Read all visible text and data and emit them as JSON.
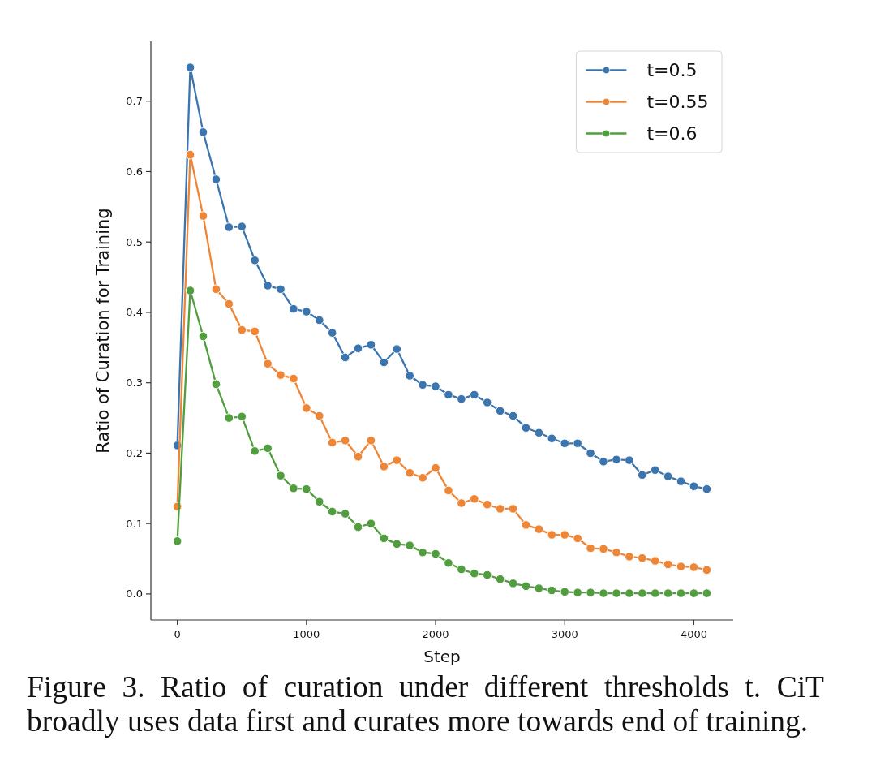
{
  "chart_data": {
    "type": "line",
    "xlabel": "Step",
    "ylabel": "Ratio of Curation for Training",
    "annotations": [
      "Figure 3. Ratio of curation under different thresholds t. CiT broadly uses data first and curates more towards end of training."
    ],
    "x": [
      0,
      100,
      200,
      300,
      400,
      500,
      600,
      700,
      800,
      900,
      1000,
      1100,
      1200,
      1300,
      1400,
      1500,
      1600,
      1700,
      1800,
      1900,
      2000,
      2100,
      2200,
      2300,
      2400,
      2500,
      2600,
      2700,
      2800,
      2900,
      3000,
      3100,
      3200,
      3300,
      3400,
      3500,
      3600,
      3700,
      3800,
      3900,
      4000,
      4100
    ],
    "series": [
      {
        "name": "t=0.5",
        "color": "#3b75af",
        "values": [
          0.211,
          0.748,
          0.656,
          0.589,
          0.521,
          0.522,
          0.474,
          0.438,
          0.433,
          0.405,
          0.401,
          0.389,
          0.371,
          0.336,
          0.349,
          0.354,
          0.329,
          0.348,
          0.31,
          0.297,
          0.295,
          0.283,
          0.277,
          0.283,
          0.272,
          0.26,
          0.253,
          0.236,
          0.229,
          0.221,
          0.214,
          0.214,
          0.2,
          0.188,
          0.191,
          0.19,
          0.169,
          0.176,
          0.167,
          0.16,
          0.153,
          0.149
        ]
      },
      {
        "name": "t=0.55",
        "color": "#ef8636",
        "values": [
          0.124,
          0.624,
          0.537,
          0.433,
          0.412,
          0.375,
          0.373,
          0.327,
          0.311,
          0.306,
          0.264,
          0.253,
          0.215,
          0.218,
          0.195,
          0.218,
          0.181,
          0.19,
          0.172,
          0.165,
          0.179,
          0.147,
          0.129,
          0.135,
          0.127,
          0.121,
          0.121,
          0.098,
          0.092,
          0.084,
          0.084,
          0.079,
          0.065,
          0.064,
          0.059,
          0.053,
          0.051,
          0.047,
          0.042,
          0.039,
          0.038,
          0.034
        ]
      },
      {
        "name": "t=0.6",
        "color": "#519e3e",
        "values": [
          0.075,
          0.431,
          0.366,
          0.298,
          0.25,
          0.252,
          0.203,
          0.207,
          0.168,
          0.15,
          0.149,
          0.131,
          0.117,
          0.114,
          0.095,
          0.1,
          0.079,
          0.071,
          0.069,
          0.059,
          0.057,
          0.044,
          0.035,
          0.029,
          0.027,
          0.021,
          0.015,
          0.011,
          0.008,
          0.005,
          0.003,
          0.002,
          0.002,
          0.001,
          0.001,
          0.001,
          0.001,
          0.001,
          0.001,
          0.001,
          0.001,
          0.001
        ]
      }
    ],
    "xlim": [
      -205,
      4305
    ],
    "ylim": [
      -0.037,
      0.785
    ],
    "xticks": [
      0,
      1000,
      2000,
      3000,
      4000
    ],
    "yticks": [
      {
        "value": 0,
        "label": "0.0"
      },
      0.1,
      0.2,
      0.3,
      0.4,
      0.5,
      0.6,
      0.7
    ],
    "legend": "top right",
    "marker": "circle",
    "grid": false
  }
}
